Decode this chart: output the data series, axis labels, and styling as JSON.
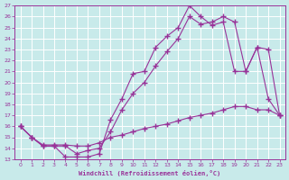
{
  "xlabel": "Windchill (Refroidissement éolien,°C)",
  "bg_color": "#c8eaea",
  "line_color": "#993399",
  "grid_color": "#ffffff",
  "xlim": [
    -0.5,
    23.5
  ],
  "ylim": [
    13,
    27
  ],
  "xticks": [
    0,
    1,
    2,
    3,
    4,
    5,
    6,
    7,
    8,
    9,
    10,
    11,
    12,
    13,
    14,
    15,
    16,
    17,
    18,
    19,
    20,
    21,
    22,
    23
  ],
  "yticks": [
    13,
    14,
    15,
    16,
    17,
    18,
    19,
    20,
    21,
    22,
    23,
    24,
    25,
    26,
    27
  ],
  "series1_x": [
    0,
    1,
    2,
    3,
    4,
    5,
    6,
    7,
    8,
    9,
    10,
    11,
    12,
    13,
    14,
    15,
    16,
    17,
    18,
    19,
    20,
    21,
    22,
    23
  ],
  "series1_y": [
    16.0,
    15.0,
    14.2,
    14.2,
    13.2,
    13.2,
    13.2,
    13.5,
    16.6,
    18.5,
    20.8,
    21.0,
    23.2,
    24.2,
    25.0,
    27.0,
    26.0,
    25.2,
    25.5,
    21.0,
    21.0,
    23.2,
    18.5,
    17.0
  ],
  "series2_x": [
    0,
    1,
    2,
    3,
    4,
    5,
    6,
    7,
    8,
    9,
    10,
    11,
    12,
    13,
    14,
    15,
    16,
    17,
    18,
    19,
    20,
    21,
    22,
    23
  ],
  "series2_y": [
    16.0,
    15.0,
    14.2,
    14.2,
    14.2,
    13.5,
    13.8,
    14.0,
    15.5,
    17.5,
    19.0,
    20.0,
    21.5,
    22.8,
    24.0,
    26.0,
    25.3,
    25.5,
    26.0,
    25.5,
    21.0,
    23.2,
    23.0,
    17.0
  ],
  "series3_x": [
    0,
    1,
    2,
    3,
    4,
    5,
    6,
    7,
    8,
    9,
    10,
    11,
    12,
    13,
    14,
    15,
    16,
    17,
    18,
    19,
    20,
    21,
    22,
    23
  ],
  "series3_y": [
    16.0,
    15.0,
    14.3,
    14.3,
    14.3,
    14.2,
    14.2,
    14.5,
    15.0,
    15.2,
    15.5,
    15.8,
    16.0,
    16.2,
    16.5,
    16.8,
    17.0,
    17.2,
    17.5,
    17.8,
    17.8,
    17.5,
    17.5,
    17.0
  ]
}
